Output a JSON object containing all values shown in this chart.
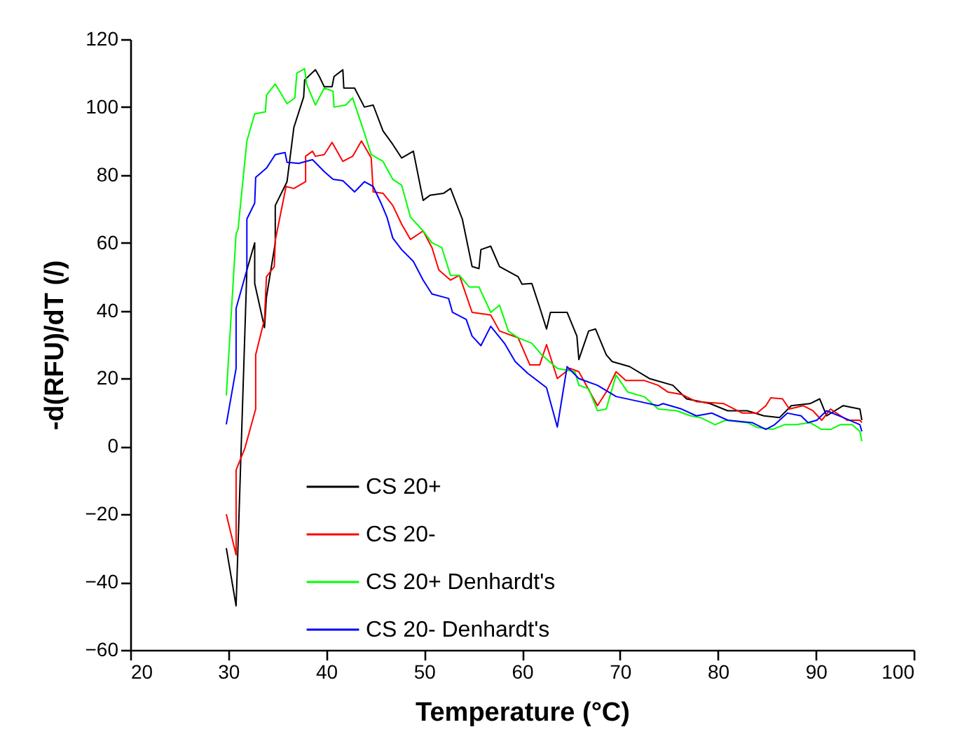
{
  "chart_data": {
    "type": "line",
    "xlabel": "Temperature (°C)",
    "ylabel": "-d(RFU)/dT (/)",
    "xlim": [
      20,
      100
    ],
    "xticks": [
      20,
      30,
      40,
      50,
      60,
      70,
      80,
      90,
      100
    ],
    "ylim": [
      -60,
      120
    ],
    "yticks": [
      -60,
      -40,
      -20,
      0,
      20,
      40,
      60,
      80,
      100,
      120
    ],
    "grid": false,
    "legend": "bottom left",
    "marker": "none",
    "line_style": "solid",
    "series": [
      {
        "name": "CS 20+",
        "color": "#000000",
        "x": [
          29.8,
          30.8,
          31.9,
          32.7,
          32.7,
          33.7,
          33.9,
          34.8,
          34.8,
          36,
          36.7,
          37.7,
          37.8,
          38.9,
          39.3,
          39.8,
          40.6,
          40.8,
          41.7,
          41.8,
          42.9,
          43.9,
          44.8,
          45.8,
          46.8,
          47.7,
          48.9,
          49.9,
          50.6,
          52,
          52.7,
          53.9,
          54.9,
          55.6,
          55.8,
          56.8,
          57.7,
          59.6,
          60,
          61,
          61.8,
          62.5,
          62.9,
          64.6,
          65.6,
          65.8,
          66.8,
          67.5,
          68.6,
          69.2,
          71,
          73,
          75.4,
          76.8,
          79.2,
          81,
          83,
          84.7,
          86.3,
          87.5,
          89.4,
          90.4,
          91.1,
          92.8,
          94.5,
          94.7
        ],
        "values": [
          -30,
          -47,
          52,
          60,
          48,
          35,
          44,
          60,
          71,
          78,
          94,
          103,
          108,
          111,
          109,
          106,
          106,
          109,
          111,
          105.6,
          105.6,
          100,
          100.6,
          93,
          89,
          85,
          87,
          72.5,
          74,
          74.6,
          76,
          67,
          53,
          52.4,
          58,
          59,
          53,
          50,
          47.8,
          48,
          41,
          34.6,
          39.5,
          39.5,
          32.5,
          25.6,
          34,
          34.6,
          27,
          25,
          23.5,
          20,
          18,
          14,
          12.6,
          10.5,
          10.5,
          9,
          8.5,
          12,
          12.6,
          14,
          9,
          12,
          11,
          7.7
        ]
      },
      {
        "name": "CS 20-",
        "color": "#ff0000",
        "x": [
          29.8,
          30.8,
          30.8,
          31.7,
          32.8,
          32.8,
          33.7,
          33.9,
          34.7,
          34.8,
          35.9,
          36.7,
          37.9,
          37.9,
          38.6,
          38.9,
          39.8,
          40.6,
          41.7,
          42.7,
          43.6,
          44.6,
          44.8,
          45.8,
          46.8,
          47.7,
          48.6,
          49.9,
          50.8,
          51.5,
          52.7,
          53.6,
          54.9,
          56.8,
          57.7,
          59.6,
          60.8,
          61.8,
          62.5,
          63.6,
          64.9,
          65.8,
          67.7,
          68.6,
          69.6,
          70.6,
          72.5,
          73.9,
          74.9,
          76.3,
          77.8,
          80.6,
          82.5,
          84,
          84.9,
          85.4,
          86.6,
          87.3,
          88.7,
          89.7,
          90.6,
          91.5,
          93.2,
          94.5,
          94.7
        ],
        "values": [
          -20,
          -32,
          -7,
          -0.5,
          11,
          27,
          37.5,
          50,
          53,
          60.7,
          76.6,
          76,
          78,
          85.5,
          87,
          85.5,
          86,
          89.6,
          84,
          85.5,
          90,
          85,
          75,
          74.6,
          71,
          65.5,
          61,
          63.5,
          58.6,
          52,
          49,
          50.4,
          39.5,
          38.7,
          34,
          32,
          24,
          24,
          30,
          20,
          23,
          22,
          12,
          16,
          22,
          19.4,
          19.4,
          18,
          16,
          15.3,
          13.2,
          12.6,
          9.8,
          9.8,
          12,
          14.3,
          14,
          11,
          12,
          10.5,
          7.7,
          11,
          7.7,
          7.7,
          7
        ]
      },
      {
        "name": "CS 20+  Denhardt's",
        "color": "#00ff00",
        "x": [
          29.8,
          30.8,
          31,
          31.9,
          32.7,
          33.8,
          33.9,
          34.8,
          36,
          36.8,
          37,
          37.8,
          38,
          38.9,
          39.8,
          40.7,
          40.8,
          42,
          42.7,
          43.9,
          44.6,
          45.8,
          46.8,
          47.7,
          48.6,
          49.9,
          50.8,
          51.8,
          52.7,
          53.6,
          54.6,
          55.6,
          56.8,
          57.7,
          58.6,
          59.6,
          61,
          62,
          63.6,
          65.4,
          65.8,
          66.8,
          67.7,
          68.6,
          69.6,
          70.8,
          72.5,
          73.9,
          75.8,
          77.2,
          78.2,
          79.7,
          80.8,
          83,
          84,
          85.6,
          86.8,
          88,
          89.4,
          90.6,
          91.5,
          92.5,
          93.7,
          94.5,
          94.7
        ],
        "values": [
          15,
          62.7,
          64,
          90,
          98,
          98.6,
          103.5,
          106.8,
          101,
          102.7,
          110,
          111.3,
          106.8,
          100.6,
          105.6,
          104.7,
          100,
          100.6,
          102.7,
          92.4,
          86,
          84,
          78.7,
          77,
          67.6,
          63.5,
          60,
          58.6,
          50.4,
          50.4,
          47,
          47,
          39.5,
          41.6,
          34,
          32,
          30.4,
          27,
          23,
          22,
          18,
          17,
          10.5,
          11,
          21,
          16,
          14.6,
          11,
          10.5,
          9,
          8.5,
          6.4,
          7.7,
          7,
          5.6,
          5,
          6.4,
          6.4,
          7,
          5,
          5,
          6.4,
          6.4,
          4.4,
          1.5
        ]
      },
      {
        "name": "CS 20-  Denhardt's",
        "color": "#0000ff",
        "x": [
          29.8,
          30.8,
          30.8,
          31.9,
          31.9,
          32.7,
          32.8,
          33.9,
          34.8,
          35.8,
          36,
          37.2,
          38.6,
          39.8,
          40.7,
          41.7,
          42.9,
          43.9,
          44.8,
          45.6,
          46.2,
          46.8,
          47.7,
          48.9,
          49.9,
          50.8,
          52.5,
          52.9,
          54.3,
          54.9,
          55.8,
          56.8,
          58.2,
          59.3,
          60.6,
          62.5,
          63.6,
          64.6,
          65.8,
          67.7,
          69.6,
          72,
          73.9,
          74.4,
          76.3,
          77.8,
          79.4,
          81,
          83.5,
          84.9,
          85.8,
          87.1,
          88.5,
          89.2,
          90.1,
          91.1,
          92.8,
          94.5,
          94.7
        ],
        "values": [
          6.5,
          23,
          40.7,
          52,
          67,
          71.7,
          79.3,
          82,
          86,
          86.6,
          83.7,
          83.4,
          84.5,
          81,
          78.7,
          78.3,
          75,
          78,
          76.6,
          71.7,
          67.6,
          61.4,
          58,
          54.5,
          49,
          44.9,
          43.6,
          39.5,
          37.4,
          32.5,
          29.7,
          35.4,
          30.4,
          25,
          21.5,
          17.3,
          5.7,
          23.5,
          20,
          18,
          14.7,
          13.2,
          12,
          12.6,
          11,
          9,
          9.8,
          7.7,
          7,
          5,
          6.4,
          9.8,
          9,
          7,
          7.7,
          10.5,
          8.5,
          6.4,
          4.4
        ]
      }
    ]
  }
}
